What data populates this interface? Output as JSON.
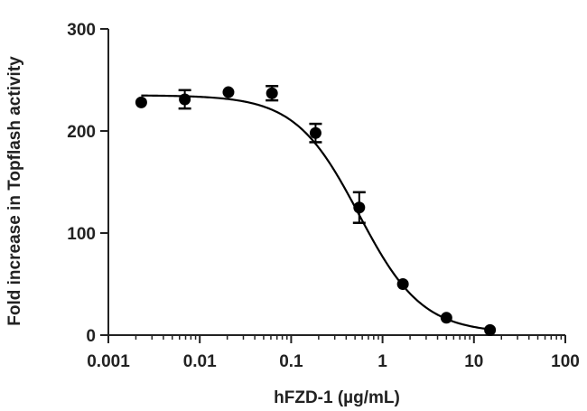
{
  "chart_data": {
    "type": "scatter",
    "title": "",
    "xlabel": "hFZD-1 (µg/mL)",
    "ylabel": "Fold increase in Topflash activity",
    "x_scale": "log",
    "xlim": [
      0.001,
      100
    ],
    "ylim": [
      0,
      300
    ],
    "x_ticks": [
      0.001,
      0.01,
      0.1,
      1,
      10,
      100
    ],
    "x_tick_labels": [
      "0.001",
      "0.01",
      "0.1",
      "1",
      "10",
      "100"
    ],
    "y_ticks": [
      0,
      100,
      200,
      300
    ],
    "y_tick_labels": [
      "0",
      "100",
      "200",
      "300"
    ],
    "grid": false,
    "legend": "none",
    "colors": {
      "marker": "#000000",
      "line": "#000000",
      "axis": "#222222"
    },
    "series": [
      {
        "points": [
          {
            "x": 0.00229,
            "y": 228,
            "err": 0
          },
          {
            "x": 0.00686,
            "y": 231,
            "err": 9
          },
          {
            "x": 0.0206,
            "y": 238,
            "err": 0
          },
          {
            "x": 0.0617,
            "y": 237,
            "err": 7
          },
          {
            "x": 0.185,
            "y": 198,
            "err": 9
          },
          {
            "x": 0.556,
            "y": 125,
            "err": 15
          },
          {
            "x": 1.67,
            "y": 50,
            "err": 0
          },
          {
            "x": 5.0,
            "y": 17,
            "err": 0
          },
          {
            "x": 15.0,
            "y": 5,
            "err": 0
          }
        ],
        "fit": {
          "model": "sigmoidal dose-response",
          "top": 235,
          "bottom": 2,
          "ic50": 0.55,
          "hill": 1.25
        }
      }
    ]
  }
}
